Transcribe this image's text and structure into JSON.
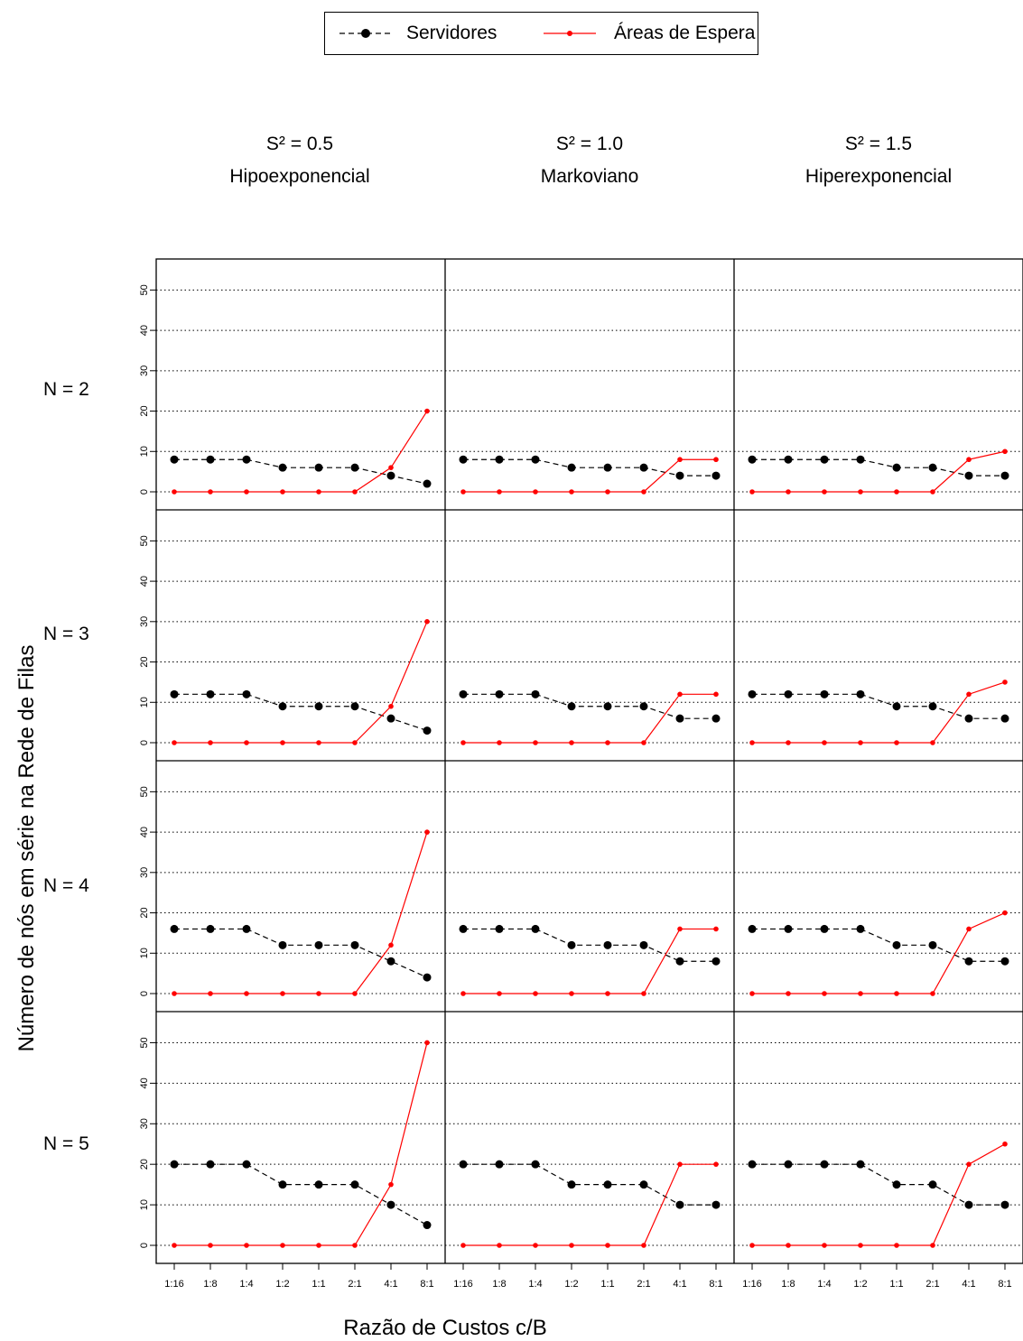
{
  "legend": {
    "servers_label": "Servidores",
    "waiting_label": "Áreas de Espera"
  },
  "colors": {
    "servers": "#000000",
    "waiting": "#ff0000",
    "grid": "#000000"
  },
  "columns": [
    {
      "s2_label": "S² = 0.5",
      "dist_label": "Hipoexponencial"
    },
    {
      "s2_label": "S² = 1.0",
      "dist_label": "Markoviano"
    },
    {
      "s2_label": "S² = 1.5",
      "dist_label": "Hiperexponencial"
    }
  ],
  "rows": [
    {
      "label": "N = 2"
    },
    {
      "label": "N = 3"
    },
    {
      "label": "N = 4"
    },
    {
      "label": "N = 5"
    }
  ],
  "axis": {
    "ylabel": "Número de nós em série na Rede de Filas",
    "xlabel": "Razão de Custos c/B"
  },
  "chart_data": {
    "type": "line",
    "xlabel": "Razão de Custos c/B",
    "ylabel": "Número de nós em série na Rede de Filas",
    "categories": [
      "1:16",
      "1:8",
      "1:4",
      "1:2",
      "1:1",
      "2:1",
      "4:1",
      "8:1"
    ],
    "yticks": [
      0,
      10,
      20,
      30,
      40,
      50
    ],
    "ylim": [
      0,
      55
    ],
    "grid": "horizontal dotted",
    "legend_position": "top-center",
    "series_names": [
      "Servidores",
      "Áreas de Espera"
    ],
    "panels": [
      {
        "row": "N = 2",
        "column": "S² = 0.5",
        "servidores": [
          8,
          8,
          8,
          6,
          6,
          6,
          4,
          2
        ],
        "areas_de_espera": [
          0,
          0,
          0,
          0,
          0,
          0,
          6,
          20
        ]
      },
      {
        "row": "N = 2",
        "column": "S² = 1.0",
        "servidores": [
          8,
          8,
          8,
          6,
          6,
          6,
          4,
          4
        ],
        "areas_de_espera": [
          0,
          0,
          0,
          0,
          0,
          0,
          8,
          8
        ]
      },
      {
        "row": "N = 2",
        "column": "S² = 1.5",
        "servidores": [
          8,
          8,
          8,
          8,
          6,
          6,
          4,
          4
        ],
        "areas_de_espera": [
          0,
          0,
          0,
          0,
          0,
          0,
          8,
          10
        ]
      },
      {
        "row": "N = 3",
        "column": "S² = 0.5",
        "servidores": [
          12,
          12,
          12,
          9,
          9,
          9,
          6,
          3
        ],
        "areas_de_espera": [
          0,
          0,
          0,
          0,
          0,
          0,
          9,
          30
        ]
      },
      {
        "row": "N = 3",
        "column": "S² = 1.0",
        "servidores": [
          12,
          12,
          12,
          9,
          9,
          9,
          6,
          6
        ],
        "areas_de_espera": [
          0,
          0,
          0,
          0,
          0,
          0,
          12,
          12
        ]
      },
      {
        "row": "N = 3",
        "column": "S² = 1.5",
        "servidores": [
          12,
          12,
          12,
          12,
          9,
          9,
          6,
          6
        ],
        "areas_de_espera": [
          0,
          0,
          0,
          0,
          0,
          0,
          12,
          15
        ]
      },
      {
        "row": "N = 4",
        "column": "S² = 0.5",
        "servidores": [
          16,
          16,
          16,
          12,
          12,
          12,
          8,
          4
        ],
        "areas_de_espera": [
          0,
          0,
          0,
          0,
          0,
          0,
          12,
          40
        ]
      },
      {
        "row": "N = 4",
        "column": "S² = 1.0",
        "servidores": [
          16,
          16,
          16,
          12,
          12,
          12,
          8,
          8
        ],
        "areas_de_espera": [
          0,
          0,
          0,
          0,
          0,
          0,
          16,
          16
        ]
      },
      {
        "row": "N = 4",
        "column": "S² = 1.5",
        "servidores": [
          16,
          16,
          16,
          16,
          12,
          12,
          8,
          8
        ],
        "areas_de_espera": [
          0,
          0,
          0,
          0,
          0,
          0,
          16,
          20
        ]
      },
      {
        "row": "N = 5",
        "column": "S² = 0.5",
        "servidores": [
          20,
          20,
          20,
          15,
          15,
          15,
          10,
          5
        ],
        "areas_de_espera": [
          0,
          0,
          0,
          0,
          0,
          0,
          15,
          50
        ]
      },
      {
        "row": "N = 5",
        "column": "S² = 1.0",
        "servidores": [
          20,
          20,
          20,
          15,
          15,
          15,
          10,
          10
        ],
        "areas_de_espera": [
          0,
          0,
          0,
          0,
          0,
          0,
          20,
          20
        ]
      },
      {
        "row": "N = 5",
        "column": "S² = 1.5",
        "servidores": [
          20,
          20,
          20,
          20,
          15,
          15,
          10,
          10
        ],
        "areas_de_espera": [
          0,
          0,
          0,
          0,
          0,
          0,
          20,
          25
        ]
      }
    ]
  }
}
